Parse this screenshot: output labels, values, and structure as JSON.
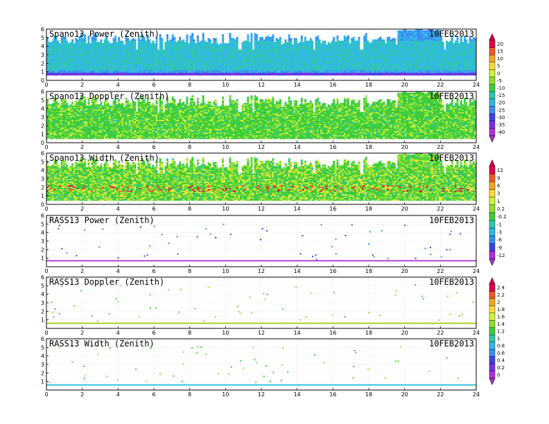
{
  "figure": {
    "date_label": "10FEB2013"
  },
  "chart_data": [
    {
      "type": "heatmap",
      "title": "Spano13 Power (Zenith)",
      "x_ticks": [
        0,
        2,
        4,
        6,
        8,
        10,
        12,
        14,
        16,
        18,
        20,
        22,
        24
      ],
      "y_ticks": [
        0,
        1,
        2,
        3,
        4,
        5,
        6
      ],
      "xlim": [
        0,
        24
      ],
      "ylim": [
        0,
        6
      ],
      "colorbar": 0,
      "kind": "power"
    },
    {
      "type": "heatmap",
      "title": "Spano13 Doppler (Zenith)",
      "x_ticks": [
        0,
        2,
        4,
        6,
        8,
        10,
        12,
        14,
        16,
        18,
        20,
        22,
        24
      ],
      "y_ticks": [
        0,
        1,
        2,
        3,
        4,
        5,
        6
      ],
      "xlim": [
        0,
        24
      ],
      "ylim": [
        0,
        6
      ],
      "colorbar": 0,
      "kind": "doppler"
    },
    {
      "type": "heatmap",
      "title": "Spano13 Width (Zenith)",
      "x_ticks": [
        0,
        2,
        4,
        6,
        8,
        10,
        12,
        14,
        16,
        18,
        20,
        22,
        24
      ],
      "y_ticks": [
        0,
        1,
        2,
        3,
        4,
        5,
        6
      ],
      "xlim": [
        0,
        24
      ],
      "ylim": [
        0,
        6
      ],
      "colorbar": 1,
      "kind": "width"
    },
    {
      "type": "scatter",
      "title": "RASS13 Power (Zenith)",
      "x_ticks": [
        0,
        2,
        4,
        6,
        8,
        10,
        12,
        14,
        16,
        18,
        20,
        22,
        24
      ],
      "y_ticks": [
        1,
        2,
        3,
        4,
        5,
        6
      ],
      "xlim": [
        0,
        24
      ],
      "ylim": [
        0,
        6
      ],
      "colorbar": 1,
      "line_y": 0.7,
      "line_color": "#b040d0"
    },
    {
      "type": "scatter",
      "title": "RASS13 Doppler (Zenith)",
      "x_ticks": [
        0,
        2,
        4,
        6,
        8,
        10,
        12,
        14,
        16,
        18,
        20,
        22,
        24
      ],
      "y_ticks": [
        1,
        2,
        3,
        4,
        5,
        6
      ],
      "xlim": [
        0,
        24
      ],
      "ylim": [
        0,
        6
      ],
      "colorbar": 2,
      "line_y": 0.6,
      "line_color": "#a8d020"
    },
    {
      "type": "scatter",
      "title": "RASS13 Width (Zenith)",
      "x_ticks": [
        0,
        2,
        4,
        6,
        8,
        10,
        12,
        14,
        16,
        18,
        20,
        22,
        24
      ],
      "y_ticks": [
        1,
        2,
        3,
        4,
        5,
        6
      ],
      "xlim": [
        0,
        24
      ],
      "ylim": [
        0,
        6
      ],
      "colorbar": 2,
      "line_y": 0.6,
      "line_color": "#30c0e0"
    }
  ],
  "colorbars": [
    {
      "labels": [
        "20",
        "15",
        "10",
        "5",
        "0",
        "-5",
        "-10",
        "-15",
        "-20",
        "-25",
        "-30",
        "-35",
        "-40"
      ]
    },
    {
      "labels": [
        "12",
        "9",
        "6",
        "3",
        "1",
        "0.2",
        "-0.2",
        "-1",
        "-3",
        "-6",
        "-9",
        "-12"
      ]
    },
    {
      "labels": [
        "2.4",
        "2.2",
        "2",
        "1.8",
        "1.6",
        "1.4",
        "1.2",
        "1",
        "0.8",
        "0.6",
        "0.4",
        "0.2",
        "0"
      ]
    }
  ],
  "palette": [
    "#e8004a",
    "#f05a28",
    "#f5a623",
    "#f8dc3c",
    "#d0f040",
    "#8ee030",
    "#3ccc3c",
    "#30c8a8",
    "#30b8e8",
    "#3c8cf0",
    "#4040e8",
    "#7a30e0",
    "#b030d8"
  ]
}
